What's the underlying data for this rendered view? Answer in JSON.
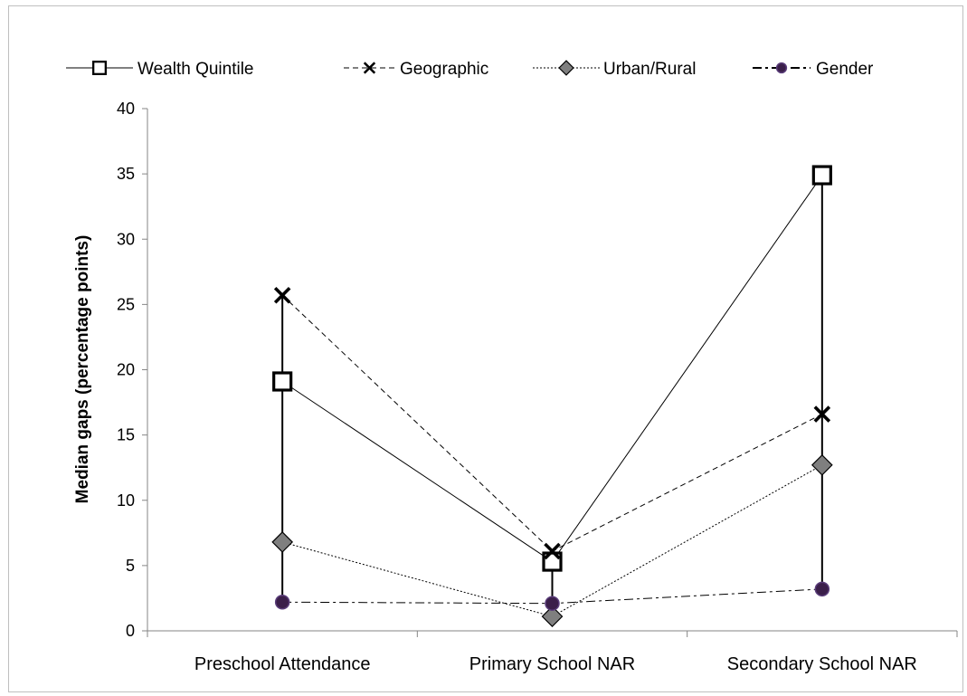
{
  "chart_data": {
    "type": "line",
    "title": "",
    "xlabel": "",
    "ylabel": "Median gaps (percentage points)",
    "ylim": [
      0,
      40
    ],
    "yticks": [
      0,
      5,
      10,
      15,
      20,
      25,
      30,
      35,
      40
    ],
    "categories": [
      "Preschool Attendance",
      "Primary School NAR",
      "Secondary School NAR"
    ],
    "legend_position": "top",
    "grid": false,
    "high_low_lines": true,
    "series": [
      {
        "name": "Wealth Quintile",
        "values": [
          19.1,
          5.3,
          34.9
        ],
        "marker": "square",
        "dash": "solid"
      },
      {
        "name": "Geographic",
        "values": [
          25.7,
          6.1,
          16.6
        ],
        "marker": "x",
        "dash": "dashed"
      },
      {
        "name": "Urban/Rural",
        "values": [
          6.8,
          1.1,
          12.7
        ],
        "marker": "diamond",
        "dash": "dotted"
      },
      {
        "name": "Gender",
        "values": [
          2.2,
          2.1,
          3.2
        ],
        "marker": "circle",
        "dash": "dashdot"
      }
    ],
    "colors": {
      "line": "#000000",
      "diamond_fill": "#7f7f7f",
      "circle_fill": "#3b1f4a",
      "circle_stroke": "#5a3d7a",
      "axis": "#868686",
      "frame": "#bfbfbf"
    }
  }
}
